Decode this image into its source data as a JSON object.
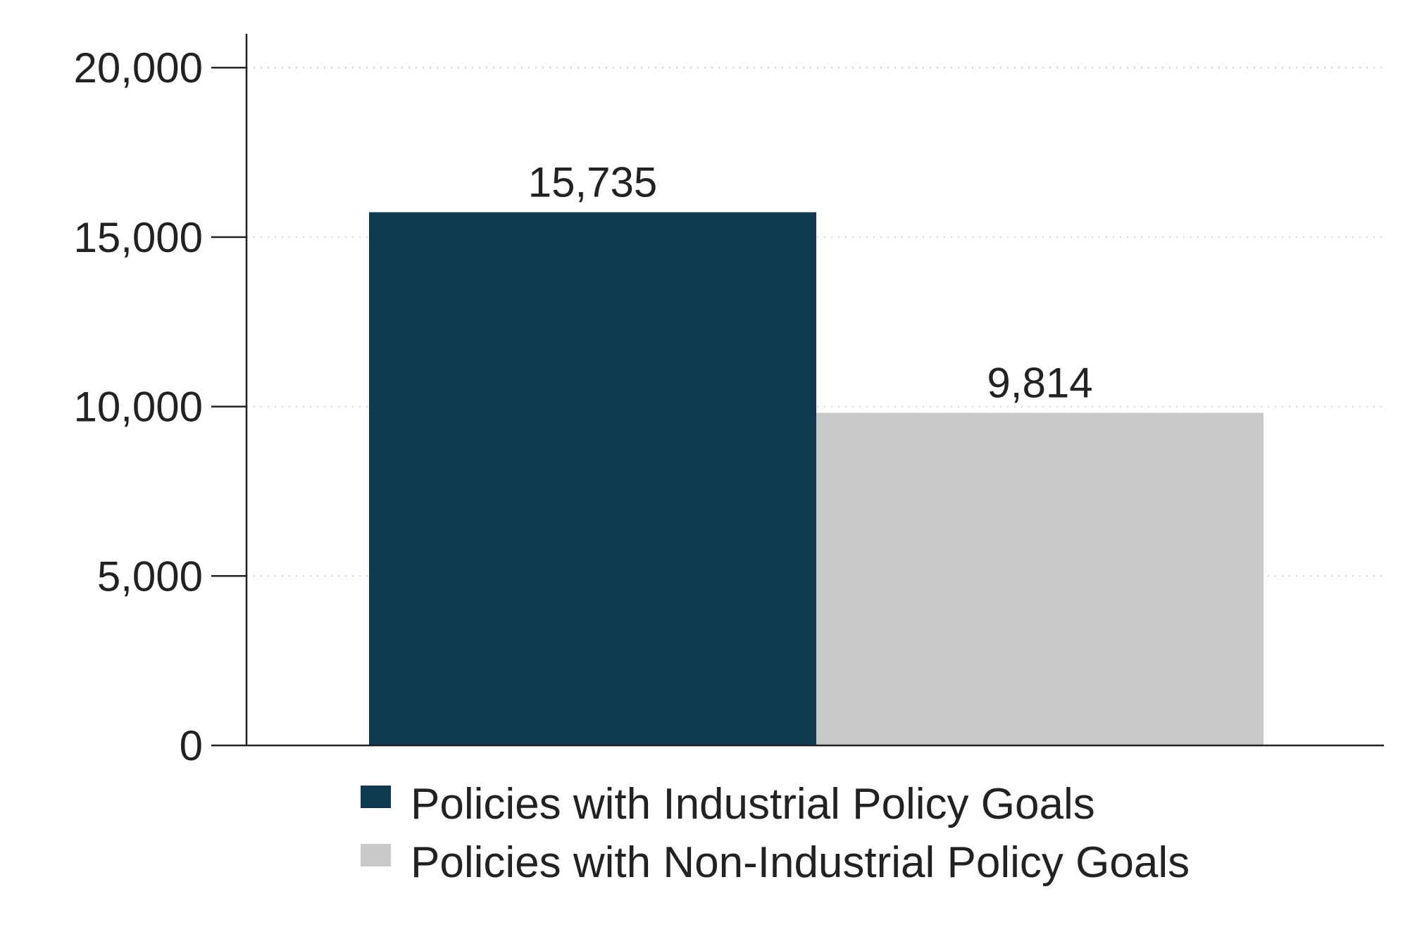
{
  "chart_data": {
    "type": "bar",
    "categories": [
      "Policies with Industrial Policy Goals",
      "Policies with Non-Industrial Policy Goals"
    ],
    "values": [
      15735,
      9814
    ],
    "data_labels": [
      "15,735",
      "9,814"
    ],
    "colors": [
      "#0f3a52",
      "#c8c8c8"
    ],
    "title": "",
    "xlabel": "",
    "ylabel": "",
    "ylim": [
      0,
      21000
    ],
    "yticks": [
      0,
      5000,
      10000,
      15000,
      20000
    ],
    "ytick_labels": [
      "0",
      "5,000",
      "10,000",
      "15,000",
      "20,000"
    ],
    "grid": "horizontal dotted",
    "legend": {
      "placement": "bottom",
      "entries": [
        "Policies with Industrial Policy Goals",
        "Policies with Non-Industrial Policy Goals"
      ]
    }
  }
}
